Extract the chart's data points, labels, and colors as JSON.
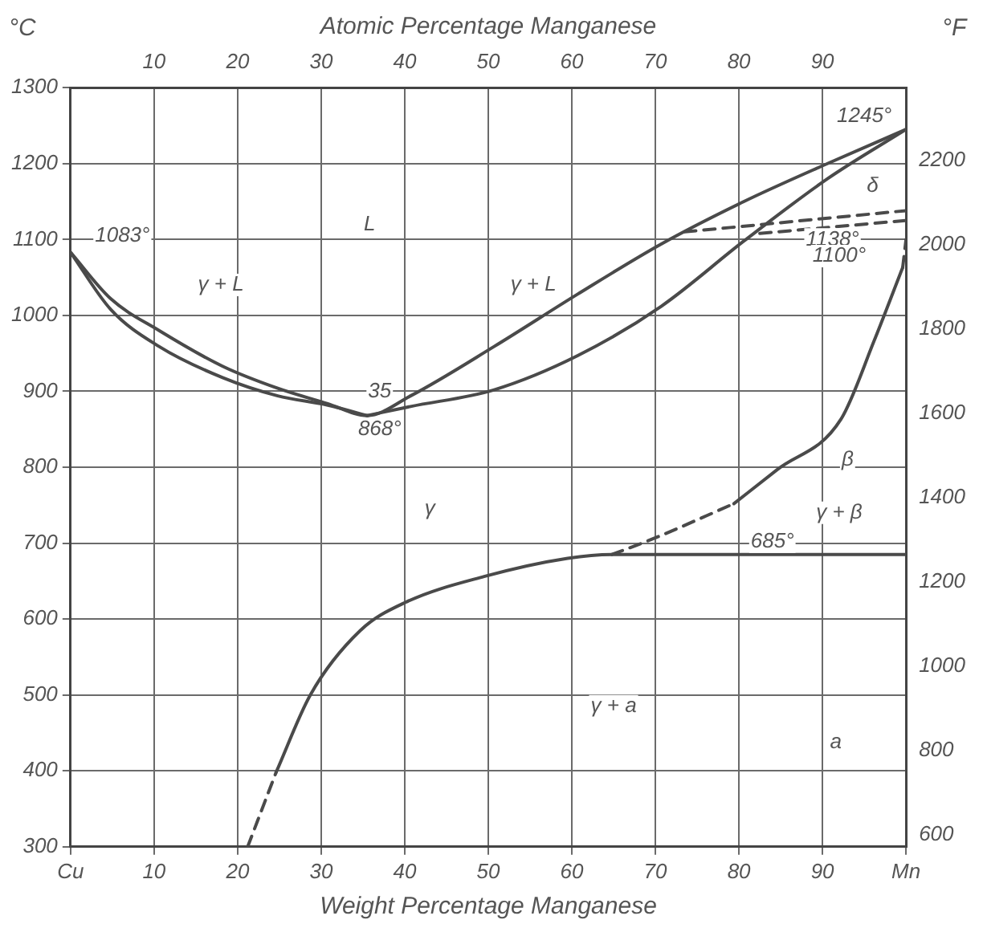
{
  "chart_data": {
    "type": "line",
    "xlabel": "Weight Percentage Manganese",
    "x2label": "Atomic Percentage Manganese",
    "ylabel": "°C",
    "y2label": "°F",
    "xlim": [
      0,
      100
    ],
    "xticks": [
      {
        "value": 0,
        "label": "Cu"
      },
      10,
      20,
      30,
      40,
      50,
      60,
      70,
      80,
      90,
      {
        "value": 100,
        "label": "Mn"
      }
    ],
    "x2lim": [
      0,
      100
    ],
    "x2ticks": [
      10,
      20,
      30,
      40,
      50,
      60,
      70,
      80,
      90
    ],
    "ylim": [
      300,
      1300
    ],
    "yticks": [
      300,
      400,
      500,
      600,
      700,
      800,
      900,
      1000,
      1100,
      1200,
      1300
    ],
    "y2lim": [
      572,
      2372
    ],
    "y2ticks": [
      600,
      800,
      1000,
      1200,
      1400,
      1600,
      1800,
      2000,
      2200
    ],
    "grid": true,
    "legend": false,
    "marker": "none",
    "series": [
      {
        "color": "#4a4a4a",
        "line_style": "solid",
        "x": [
          0,
          4.8,
          10.6,
          18.2,
          24.8,
          30.7,
          35.5,
          40.7,
          50.7,
          60.7,
          70.7,
          80.6,
          90.6,
          100
        ],
        "values": [
          1083,
          1022,
          980,
          933,
          904,
          884,
          868,
          894,
          959,
          1028,
          1094,
          1150,
          1200,
          1245
        ]
      },
      {
        "color": "#4a4a4a",
        "line_style": "solid",
        "x": [
          0,
          4.8,
          10.6,
          18.2,
          24.8,
          30.7,
          35.5
        ],
        "values": [
          1083,
          1008,
          959,
          918,
          894,
          882,
          868
        ]
      },
      {
        "color": "#4a4a4a",
        "line_style": "solid",
        "x": [
          35.5,
          40.7,
          50.7,
          60.7,
          70.7,
          80.6,
          90.6,
          100
        ],
        "values": [
          868,
          880,
          902,
          947,
          1012,
          1098,
          1180,
          1245
        ]
      },
      {
        "color": "#4a4a4a",
        "line_style": "dashed",
        "x": [
          21.2,
          24.6
        ],
        "values": [
          300,
          398
        ]
      },
      {
        "color": "#4a4a4a",
        "line_style": "solid",
        "x": [
          24.6,
          28.7,
          34.7,
          40.1,
          49.5,
          59.5,
          64.8,
          100
        ],
        "values": [
          398,
          500,
          585,
          622,
          656,
          680,
          685,
          685
        ]
      },
      {
        "color": "#4a4a4a",
        "line_style": "dashed",
        "x": [
          64.8,
          70,
          79.4
        ],
        "values": [
          685,
          707,
          752
        ]
      },
      {
        "color": "#4a4a4a",
        "line_style": "solid",
        "x": [
          79.4,
          84.6,
          92.2,
          96.2,
          99.6
        ],
        "values": [
          752,
          797,
          863,
          967,
          1063
        ]
      },
      {
        "color": "#4a4a4a",
        "line_style": "dashed",
        "x": [
          99.6,
          100
        ],
        "values": [
          1063,
          1100
        ]
      },
      {
        "color": "#4a4a4a",
        "line_style": "dashed",
        "x": [
          73.5,
          100
        ],
        "values": [
          1110,
          1138
        ]
      },
      {
        "color": "#4a4a4a",
        "line_style": "dashed",
        "x": [
          82.5,
          100
        ],
        "values": [
          1108,
          1125
        ]
      }
    ],
    "annotations": [
      {
        "text": "L",
        "x": 35.8,
        "y": 1120
      },
      {
        "text": "γ + L",
        "x": 18,
        "y": 1040
      },
      {
        "text": "γ + L",
        "x": 55.4,
        "y": 1040
      },
      {
        "text": "35",
        "x": 37,
        "y": 900
      },
      {
        "text": "868°",
        "x": 37,
        "y": 850
      },
      {
        "text": "1083°",
        "x": 6.2,
        "y": 1105
      },
      {
        "text": "1245°",
        "x": 95,
        "y": 1262
      },
      {
        "text": "δ",
        "x": 96,
        "y": 1170
      },
      {
        "text": "1138°",
        "x": 91.2,
        "y": 1100
      },
      {
        "text": "1100°",
        "x": 92,
        "y": 1078
      },
      {
        "text": "β",
        "x": 93,
        "y": 810
      },
      {
        "text": "γ + β",
        "x": 92,
        "y": 740
      },
      {
        "text": "685°",
        "x": 84,
        "y": 702
      },
      {
        "text": "γ",
        "x": 43,
        "y": 745
      },
      {
        "text": "γ + a",
        "x": 65,
        "y": 485
      },
      {
        "text": "a",
        "x": 91.6,
        "y": 437
      }
    ]
  }
}
